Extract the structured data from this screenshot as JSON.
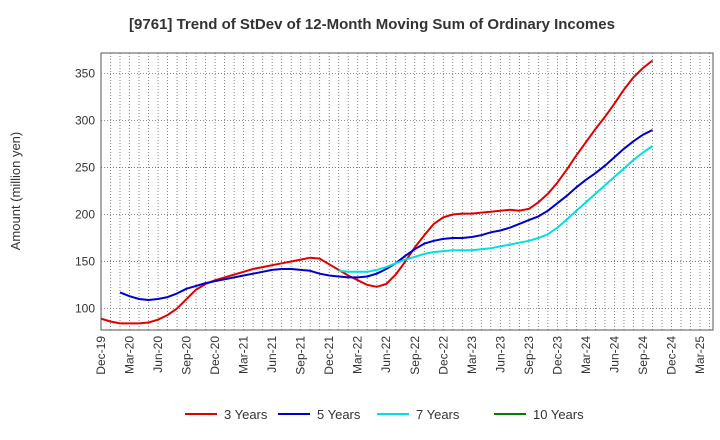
{
  "chart_data": {
    "type": "line",
    "title": "[9761]  Trend of StDev of 12-Month Moving Sum of Ordinary Incomes",
    "xlabel": "",
    "ylabel": "Amount (million yen)",
    "ylim": [
      77,
      372
    ],
    "yticks": [
      100,
      150,
      200,
      250,
      300,
      350
    ],
    "x_tick_labels": [
      "Dec-19",
      "Mar-20",
      "Jun-20",
      "Sep-20",
      "Dec-20",
      "Mar-21",
      "Jun-21",
      "Sep-21",
      "Dec-21",
      "Mar-22",
      "Jun-22",
      "Sep-22",
      "Dec-22",
      "Mar-23",
      "Jun-23",
      "Sep-23",
      "Dec-23",
      "Mar-24",
      "Jun-24",
      "Sep-24",
      "Dec-24",
      "Mar-25"
    ],
    "grid": true,
    "legend_position": "bottom",
    "series": [
      {
        "name": "3 Years",
        "color": "#e00000",
        "start_index": 0,
        "values": [
          89,
          86,
          84,
          84,
          84,
          85,
          88,
          93,
          100,
          110,
          120,
          126,
          130,
          133,
          136,
          139,
          142,
          144,
          146,
          148,
          150,
          152,
          154,
          153,
          147,
          141,
          135,
          130,
          125,
          123,
          126,
          136,
          150,
          165,
          178,
          190,
          197,
          200,
          201,
          201,
          202,
          203,
          204,
          205,
          204,
          206,
          213,
          222,
          234,
          248,
          263,
          277,
          291,
          304,
          318,
          333,
          346,
          356,
          364
        ]
      },
      {
        "name": "5 Years",
        "color": "#0000cc",
        "start_index": 2,
        "values": [
          117,
          113,
          110,
          109,
          110,
          112,
          116,
          121,
          124,
          127,
          129,
          131,
          133,
          135,
          137,
          139,
          141,
          142,
          142,
          141,
          140,
          137,
          135,
          134,
          133,
          133,
          134,
          137,
          142,
          148,
          156,
          163,
          169,
          172,
          174,
          175,
          175,
          176,
          178,
          181,
          183,
          186,
          190,
          194,
          198,
          204,
          212,
          220,
          229,
          237,
          244,
          252,
          261,
          270,
          278,
          285,
          290
        ]
      },
      {
        "name": "7 Years",
        "color": "#00e0e0",
        "start_index": 25,
        "values": [
          140,
          139,
          139,
          139,
          141,
          144,
          148,
          152,
          155,
          158,
          160,
          161,
          162,
          162,
          162,
          163,
          164,
          166,
          168,
          170,
          172,
          175,
          179,
          186,
          195,
          204,
          213,
          222,
          231,
          240,
          249,
          258,
          266,
          273
        ]
      },
      {
        "name": "10 Years",
        "color": "#008000",
        "start_index": 0,
        "values": []
      }
    ]
  }
}
